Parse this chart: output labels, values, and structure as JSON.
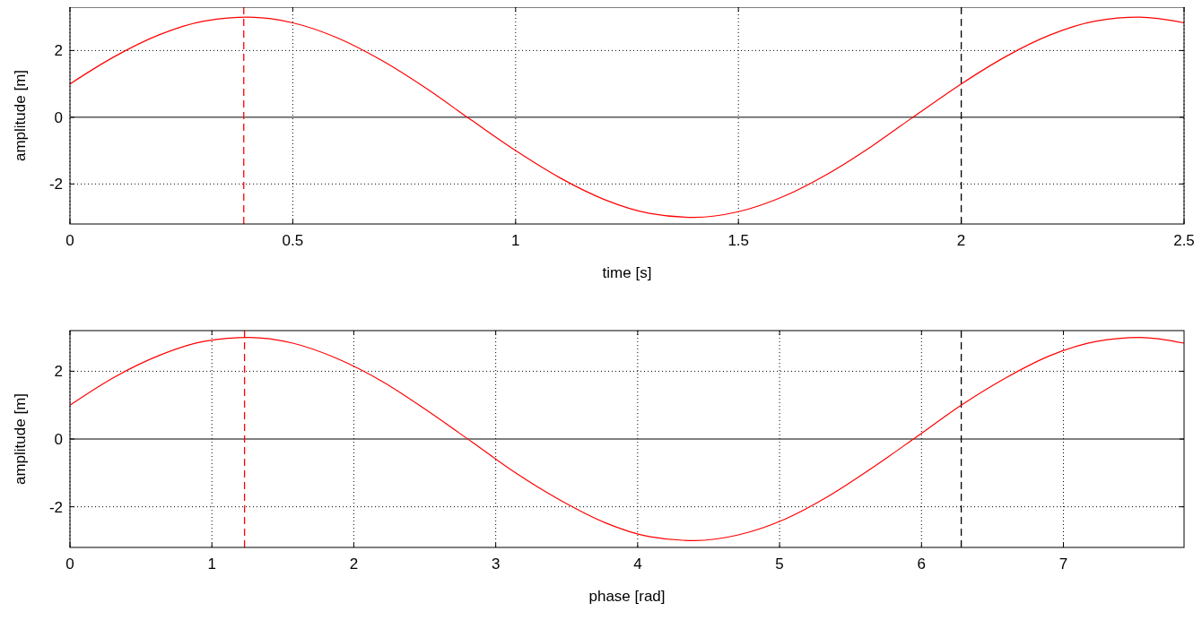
{
  "chart_data": [
    {
      "type": "line",
      "xlabel": "time [s]",
      "ylabel": "amplitude [m]",
      "x": [
        0,
        0.1,
        0.2,
        0.3,
        0.4,
        0.5,
        0.6,
        0.7,
        0.8,
        0.9,
        1,
        1.1,
        1.2,
        1.3,
        1.4,
        1.5,
        1.6,
        1.7,
        1.8,
        1.9,
        2,
        2.1,
        2.2,
        2.3,
        2.4,
        2.5
      ],
      "series": [
        {
          "color": "#ff0000",
          "values": [
            1.0,
            1.82,
            2.47,
            2.88,
            3.0,
            2.83,
            2.38,
            1.7,
            0.86,
            -0.08,
            -1.0,
            -1.82,
            -2.47,
            -2.88,
            -3.0,
            -2.83,
            -2.38,
            -1.7,
            -0.86,
            0.08,
            1.0,
            1.82,
            2.47,
            2.88,
            3.0,
            2.83
          ]
        }
      ],
      "xlim": [
        0,
        2.5
      ],
      "xticks": [
        0,
        0.5,
        1,
        1.5,
        2,
        2.5
      ],
      "ylim": [
        -3.2,
        3.3
      ],
      "yticks": [
        -2,
        0,
        2
      ],
      "grid": true,
      "ref_lines": [
        {
          "axis": "y",
          "value": 0,
          "color": "#000000",
          "line_style": "solid"
        },
        {
          "axis": "x",
          "value": 0.39,
          "color": "#ff0000",
          "line_style": "dashed"
        },
        {
          "axis": "x",
          "value": 2,
          "color": "#000000",
          "line_style": "dashed"
        }
      ]
    },
    {
      "type": "line",
      "xlabel": "phase [rad]",
      "ylabel": "amplitude [m]",
      "x": [
        0,
        0.31,
        0.63,
        0.94,
        1.26,
        1.57,
        1.88,
        2.2,
        2.51,
        2.83,
        3.14,
        3.46,
        3.77,
        4.08,
        4.4,
        4.71,
        5.03,
        5.34,
        5.65,
        5.97,
        6.28,
        6.6,
        6.91,
        7.23,
        7.54,
        7.85
      ],
      "series": [
        {
          "color": "#ff0000",
          "values": [
            1.0,
            1.82,
            2.47,
            2.88,
            3.0,
            2.83,
            2.38,
            1.7,
            0.86,
            -0.08,
            -1.0,
            -1.82,
            -2.47,
            -2.88,
            -3.0,
            -2.83,
            -2.38,
            -1.7,
            -0.86,
            0.08,
            1.0,
            1.82,
            2.47,
            2.88,
            3.0,
            2.83
          ]
        }
      ],
      "xlim": [
        0,
        7.85
      ],
      "xticks": [
        0,
        1,
        2,
        3,
        4,
        5,
        6,
        7
      ],
      "ylim": [
        -3.2,
        3.2
      ],
      "yticks": [
        -2,
        0,
        2
      ],
      "grid": true,
      "ref_lines": [
        {
          "axis": "y",
          "value": 0,
          "color": "#000000",
          "line_style": "solid"
        },
        {
          "axis": "x",
          "value": 1.23,
          "color": "#ff0000",
          "line_style": "dashed"
        },
        {
          "axis": "x",
          "value": 6.28,
          "color": "#000000",
          "line_style": "dashed"
        }
      ]
    }
  ]
}
